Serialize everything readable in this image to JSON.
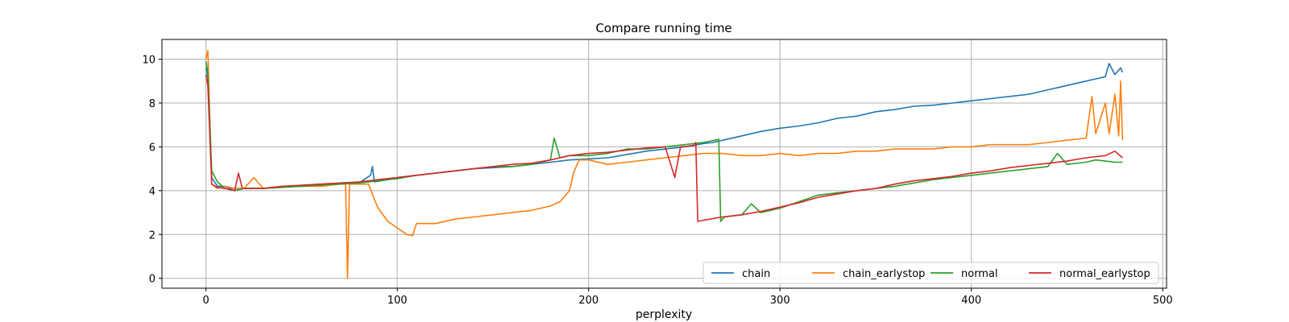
{
  "chart_data": {
    "type": "line",
    "title": "Compare running time",
    "xlabel": "perplexity",
    "ylabel": "",
    "xlim": [
      -23,
      502
    ],
    "ylim": [
      -0.45,
      10.9
    ],
    "xticks": [
      0,
      100,
      200,
      300,
      400,
      500
    ],
    "yticks": [
      0,
      2,
      4,
      6,
      8,
      10
    ],
    "grid": true,
    "legend_position": "lower-right",
    "series": [
      {
        "name": "chain",
        "color": "#1f77b4",
        "points": [
          [
            0,
            9.6
          ],
          [
            1,
            9.2
          ],
          [
            3,
            4.6
          ],
          [
            6,
            4.2
          ],
          [
            10,
            4.2
          ],
          [
            15,
            4.0
          ],
          [
            20,
            4.1
          ],
          [
            30,
            4.1
          ],
          [
            40,
            4.2
          ],
          [
            50,
            4.2
          ],
          [
            60,
            4.25
          ],
          [
            70,
            4.3
          ],
          [
            80,
            4.35
          ],
          [
            86,
            4.7
          ],
          [
            87,
            5.1
          ],
          [
            88,
            4.4
          ],
          [
            95,
            4.5
          ],
          [
            100,
            4.6
          ],
          [
            110,
            4.7
          ],
          [
            120,
            4.8
          ],
          [
            130,
            4.9
          ],
          [
            140,
            5.0
          ],
          [
            150,
            5.05
          ],
          [
            160,
            5.1
          ],
          [
            170,
            5.2
          ],
          [
            180,
            5.3
          ],
          [
            190,
            5.4
          ],
          [
            200,
            5.45
          ],
          [
            210,
            5.5
          ],
          [
            220,
            5.65
          ],
          [
            230,
            5.8
          ],
          [
            240,
            5.9
          ],
          [
            250,
            6.0
          ],
          [
            260,
            6.15
          ],
          [
            265,
            6.2
          ],
          [
            270,
            6.3
          ],
          [
            280,
            6.5
          ],
          [
            290,
            6.7
          ],
          [
            300,
            6.85
          ],
          [
            310,
            6.95
          ],
          [
            320,
            7.1
          ],
          [
            330,
            7.3
          ],
          [
            340,
            7.4
          ],
          [
            350,
            7.6
          ],
          [
            360,
            7.7
          ],
          [
            370,
            7.85
          ],
          [
            380,
            7.9
          ],
          [
            390,
            8.0
          ],
          [
            400,
            8.1
          ],
          [
            410,
            8.2
          ],
          [
            420,
            8.3
          ],
          [
            430,
            8.4
          ],
          [
            440,
            8.6
          ],
          [
            450,
            8.8
          ],
          [
            460,
            9.0
          ],
          [
            465,
            9.1
          ],
          [
            470,
            9.2
          ],
          [
            472,
            9.8
          ],
          [
            475,
            9.3
          ],
          [
            478,
            9.6
          ],
          [
            479,
            9.4
          ]
        ]
      },
      {
        "name": "chain_earlystop",
        "color": "#ff7f0e",
        "points": [
          [
            0,
            10.0
          ],
          [
            1,
            10.4
          ],
          [
            3,
            4.3
          ],
          [
            6,
            4.1
          ],
          [
            10,
            4.2
          ],
          [
            15,
            4.1
          ],
          [
            20,
            4.1
          ],
          [
            25,
            4.6
          ],
          [
            30,
            4.1
          ],
          [
            40,
            4.2
          ],
          [
            50,
            4.2
          ],
          [
            60,
            4.2
          ],
          [
            70,
            4.3
          ],
          [
            73,
            4.3
          ],
          [
            74,
            0.0
          ],
          [
            75,
            4.3
          ],
          [
            80,
            4.3
          ],
          [
            85,
            4.3
          ],
          [
            88,
            3.6
          ],
          [
            90,
            3.2
          ],
          [
            95,
            2.6
          ],
          [
            100,
            2.3
          ],
          [
            105,
            2.0
          ],
          [
            108,
            1.95
          ],
          [
            110,
            2.5
          ],
          [
            120,
            2.5
          ],
          [
            130,
            2.7
          ],
          [
            140,
            2.8
          ],
          [
            150,
            2.9
          ],
          [
            160,
            3.0
          ],
          [
            170,
            3.1
          ],
          [
            180,
            3.3
          ],
          [
            185,
            3.5
          ],
          [
            190,
            4.0
          ],
          [
            192,
            4.8
          ],
          [
            195,
            5.4
          ],
          [
            200,
            5.4
          ],
          [
            210,
            5.2
          ],
          [
            220,
            5.3
          ],
          [
            230,
            5.4
          ],
          [
            240,
            5.5
          ],
          [
            250,
            5.6
          ],
          [
            260,
            5.7
          ],
          [
            270,
            5.7
          ],
          [
            280,
            5.6
          ],
          [
            290,
            5.6
          ],
          [
            300,
            5.7
          ],
          [
            310,
            5.6
          ],
          [
            320,
            5.7
          ],
          [
            330,
            5.7
          ],
          [
            340,
            5.8
          ],
          [
            350,
            5.8
          ],
          [
            360,
            5.9
          ],
          [
            370,
            5.9
          ],
          [
            380,
            5.9
          ],
          [
            390,
            6.0
          ],
          [
            400,
            6.0
          ],
          [
            410,
            6.1
          ],
          [
            420,
            6.1
          ],
          [
            430,
            6.1
          ],
          [
            440,
            6.2
          ],
          [
            450,
            6.3
          ],
          [
            460,
            6.4
          ],
          [
            463,
            8.3
          ],
          [
            465,
            6.6
          ],
          [
            470,
            8.0
          ],
          [
            472,
            6.6
          ],
          [
            475,
            8.4
          ],
          [
            477,
            6.5
          ],
          [
            478,
            9.0
          ],
          [
            479,
            6.3
          ]
        ]
      },
      {
        "name": "normal",
        "color": "#2ca02c",
        "points": [
          [
            0,
            9.9
          ],
          [
            1,
            9.4
          ],
          [
            3,
            4.9
          ],
          [
            6,
            4.4
          ],
          [
            10,
            4.1
          ],
          [
            15,
            4.0
          ],
          [
            20,
            4.1
          ],
          [
            30,
            4.1
          ],
          [
            40,
            4.15
          ],
          [
            50,
            4.2
          ],
          [
            60,
            4.25
          ],
          [
            70,
            4.3
          ],
          [
            80,
            4.35
          ],
          [
            90,
            4.45
          ],
          [
            100,
            4.55
          ],
          [
            110,
            4.7
          ],
          [
            120,
            4.8
          ],
          [
            130,
            4.9
          ],
          [
            140,
            5.0
          ],
          [
            150,
            5.1
          ],
          [
            160,
            5.1
          ],
          [
            170,
            5.2
          ],
          [
            180,
            5.4
          ],
          [
            182,
            6.4
          ],
          [
            185,
            5.5
          ],
          [
            190,
            5.6
          ],
          [
            200,
            5.6
          ],
          [
            210,
            5.7
          ],
          [
            220,
            5.9
          ],
          [
            230,
            5.9
          ],
          [
            240,
            6.0
          ],
          [
            250,
            6.1
          ],
          [
            260,
            6.2
          ],
          [
            266,
            6.3
          ],
          [
            268,
            6.35
          ],
          [
            269,
            2.6
          ],
          [
            271,
            2.8
          ],
          [
            280,
            2.9
          ],
          [
            285,
            3.4
          ],
          [
            290,
            3.0
          ],
          [
            300,
            3.2
          ],
          [
            310,
            3.5
          ],
          [
            320,
            3.8
          ],
          [
            330,
            3.9
          ],
          [
            340,
            4.0
          ],
          [
            350,
            4.1
          ],
          [
            360,
            4.2
          ],
          [
            370,
            4.35
          ],
          [
            380,
            4.5
          ],
          [
            390,
            4.6
          ],
          [
            400,
            4.7
          ],
          [
            410,
            4.8
          ],
          [
            420,
            4.9
          ],
          [
            430,
            5.0
          ],
          [
            440,
            5.1
          ],
          [
            445,
            5.7
          ],
          [
            450,
            5.2
          ],
          [
            460,
            5.3
          ],
          [
            465,
            5.4
          ],
          [
            470,
            5.35
          ],
          [
            475,
            5.3
          ],
          [
            479,
            5.3
          ]
        ]
      },
      {
        "name": "normal_earlystop",
        "color": "#d62728",
        "points": [
          [
            0,
            9.3
          ],
          [
            1,
            8.8
          ],
          [
            3,
            4.3
          ],
          [
            6,
            4.15
          ],
          [
            10,
            4.1
          ],
          [
            15,
            4.0
          ],
          [
            17,
            4.8
          ],
          [
            19,
            4.1
          ],
          [
            25,
            4.1
          ],
          [
            30,
            4.1
          ],
          [
            40,
            4.2
          ],
          [
            50,
            4.25
          ],
          [
            60,
            4.3
          ],
          [
            70,
            4.35
          ],
          [
            80,
            4.4
          ],
          [
            90,
            4.5
          ],
          [
            100,
            4.6
          ],
          [
            110,
            4.7
          ],
          [
            120,
            4.8
          ],
          [
            130,
            4.9
          ],
          [
            140,
            5.0
          ],
          [
            150,
            5.1
          ],
          [
            160,
            5.2
          ],
          [
            170,
            5.25
          ],
          [
            180,
            5.4
          ],
          [
            190,
            5.6
          ],
          [
            200,
            5.7
          ],
          [
            210,
            5.75
          ],
          [
            220,
            5.85
          ],
          [
            230,
            5.95
          ],
          [
            240,
            6.0
          ],
          [
            245,
            4.6
          ],
          [
            248,
            6.0
          ],
          [
            255,
            6.05
          ],
          [
            256,
            6.2
          ],
          [
            257,
            2.6
          ],
          [
            260,
            2.65
          ],
          [
            270,
            2.8
          ],
          [
            280,
            2.9
          ],
          [
            290,
            3.05
          ],
          [
            300,
            3.25
          ],
          [
            310,
            3.45
          ],
          [
            320,
            3.7
          ],
          [
            330,
            3.85
          ],
          [
            340,
            4.0
          ],
          [
            350,
            4.1
          ],
          [
            360,
            4.3
          ],
          [
            370,
            4.45
          ],
          [
            380,
            4.55
          ],
          [
            390,
            4.65
          ],
          [
            400,
            4.8
          ],
          [
            410,
            4.9
          ],
          [
            420,
            5.05
          ],
          [
            430,
            5.15
          ],
          [
            440,
            5.25
          ],
          [
            450,
            5.35
          ],
          [
            460,
            5.5
          ],
          [
            470,
            5.6
          ],
          [
            475,
            5.8
          ],
          [
            479,
            5.5
          ]
        ]
      }
    ]
  }
}
